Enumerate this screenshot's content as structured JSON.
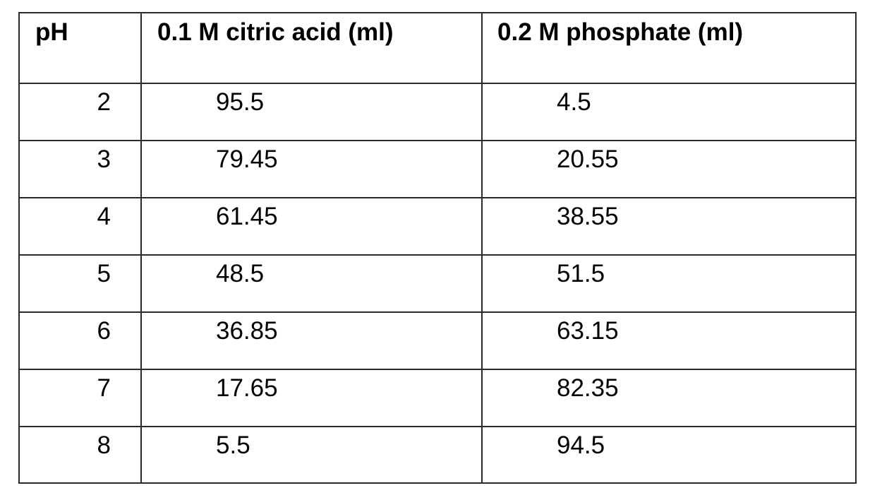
{
  "table": {
    "headers": [
      "pH",
      "0.1 M citric acid (ml)",
      "0.2 M phosphate (ml)"
    ],
    "rows": [
      {
        "ph": "2",
        "citric": "95.5",
        "phosphate": "4.5"
      },
      {
        "ph": "3",
        "citric": "79.45",
        "phosphate": "20.55"
      },
      {
        "ph": "4",
        "citric": "61.45",
        "phosphate": "38.55"
      },
      {
        "ph": "5",
        "citric": "48.5",
        "phosphate": "51.5"
      },
      {
        "ph": "6",
        "citric": "36.85",
        "phosphate": "63.15"
      },
      {
        "ph": "7",
        "citric": "17.65",
        "phosphate": "82.35"
      },
      {
        "ph": "8",
        "citric": "5.5",
        "phosphate": "94.5"
      }
    ]
  }
}
